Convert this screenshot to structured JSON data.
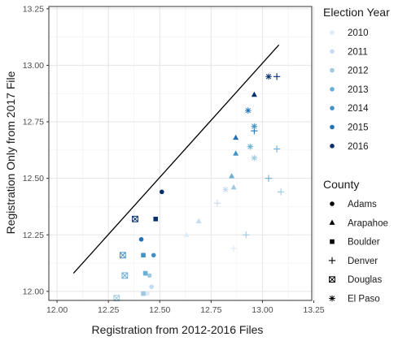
{
  "chart_data": {
    "type": "scatter",
    "xlabel": "Registration from 2012-2016 Files",
    "ylabel": "Registration Only from 2017 File",
    "xlim": [
      11.96,
      13.24
    ],
    "ylim": [
      11.96,
      13.26
    ],
    "x_ticks": [
      12.0,
      12.25,
      12.5,
      12.75,
      13.0,
      13.25
    ],
    "x_tick_labels": [
      "12.00",
      "12.25",
      "12.50",
      "12.75",
      "13.00",
      "13.25"
    ],
    "y_ticks": [
      12.0,
      12.25,
      12.5,
      12.75,
      13.0,
      13.25
    ],
    "y_tick_labels": [
      "12.00",
      "12.25",
      "12.50",
      "12.75",
      "13.00",
      "13.25"
    ],
    "grid": true,
    "reference_line": {
      "x": [
        12.08,
        13.08
      ],
      "y": [
        12.08,
        13.09
      ]
    },
    "legend_year": {
      "title": "Election Year",
      "entries": [
        {
          "label": "2010",
          "color": "#deebf7"
        },
        {
          "label": "2011",
          "color": "#c6dbef"
        },
        {
          "label": "2012",
          "color": "#9ecae1"
        },
        {
          "label": "2013",
          "color": "#6baed6"
        },
        {
          "label": "2014",
          "color": "#4292c6"
        },
        {
          "label": "2015",
          "color": "#2171b5"
        },
        {
          "label": "2016",
          "color": "#08306b"
        }
      ]
    },
    "legend_county": {
      "title": "County",
      "entries": [
        {
          "label": "Adams",
          "shape": "circle"
        },
        {
          "label": "Arapahoe",
          "shape": "triangle"
        },
        {
          "label": "Boulder",
          "shape": "square"
        },
        {
          "label": "Denver",
          "shape": "plus"
        },
        {
          "label": "Douglas",
          "shape": "boxx"
        },
        {
          "label": "El Paso",
          "shape": "star"
        }
      ]
    },
    "points": [
      {
        "county": "Adams",
        "year": "2010",
        "x": 12.44,
        "y": 11.99
      },
      {
        "county": "Adams",
        "year": "2011",
        "x": 12.46,
        "y": 12.02
      },
      {
        "county": "Adams",
        "year": "2012",
        "x": 12.45,
        "y": 12.07
      },
      {
        "county": "Adams",
        "year": "2013",
        "x": 12.43,
        "y": 12.08
      },
      {
        "county": "Adams",
        "year": "2014",
        "x": 12.47,
        "y": 12.16
      },
      {
        "county": "Adams",
        "year": "2015",
        "x": 12.41,
        "y": 12.23
      },
      {
        "county": "Adams",
        "year": "2016",
        "x": 12.51,
        "y": 12.44
      },
      {
        "county": "Arapahoe",
        "year": "2010",
        "x": 12.63,
        "y": 12.25
      },
      {
        "county": "Arapahoe",
        "year": "2011",
        "x": 12.69,
        "y": 12.31
      },
      {
        "county": "Arapahoe",
        "year": "2012",
        "x": 12.86,
        "y": 12.46
      },
      {
        "county": "Arapahoe",
        "year": "2013",
        "x": 12.85,
        "y": 12.51
      },
      {
        "county": "Arapahoe",
        "year": "2014",
        "x": 12.87,
        "y": 12.61
      },
      {
        "county": "Arapahoe",
        "year": "2015",
        "x": 12.87,
        "y": 12.68
      },
      {
        "county": "Arapahoe",
        "year": "2016",
        "x": 12.96,
        "y": 12.87
      },
      {
        "county": "Boulder",
        "year": "2012",
        "x": 12.42,
        "y": 11.99
      },
      {
        "county": "Boulder",
        "year": "2013",
        "x": 12.43,
        "y": 12.08
      },
      {
        "county": "Boulder",
        "year": "2014",
        "x": 12.42,
        "y": 12.16
      },
      {
        "county": "Boulder",
        "year": "2016",
        "x": 12.48,
        "y": 12.32
      },
      {
        "county": "Denver",
        "year": "2010",
        "x": 12.86,
        "y": 12.19
      },
      {
        "county": "Denver",
        "year": "2011",
        "x": 12.78,
        "y": 12.39
      },
      {
        "county": "Denver",
        "year": "2012",
        "x": 12.92,
        "y": 12.25
      },
      {
        "county": "Denver",
        "year": "2012",
        "x": 13.09,
        "y": 12.44
      },
      {
        "county": "Denver",
        "year": "2013",
        "x": 13.03,
        "y": 12.5
      },
      {
        "county": "Denver",
        "year": "2013",
        "x": 13.07,
        "y": 12.63
      },
      {
        "county": "Denver",
        "year": "2015",
        "x": 12.96,
        "y": 12.71
      },
      {
        "county": "Denver",
        "year": "2016",
        "x": 13.07,
        "y": 12.95
      },
      {
        "county": "Douglas",
        "year": "2012",
        "x": 12.29,
        "y": 11.97
      },
      {
        "county": "Douglas",
        "year": "2013",
        "x": 12.33,
        "y": 12.07
      },
      {
        "county": "Douglas",
        "year": "2014",
        "x": 12.32,
        "y": 12.16
      },
      {
        "county": "Douglas",
        "year": "2016",
        "x": 12.38,
        "y": 12.32
      },
      {
        "county": "El Paso",
        "year": "2011",
        "x": 12.82,
        "y": 12.45
      },
      {
        "county": "El Paso",
        "year": "2012",
        "x": 12.96,
        "y": 12.59
      },
      {
        "county": "El Paso",
        "year": "2013",
        "x": 12.94,
        "y": 12.64
      },
      {
        "county": "El Paso",
        "year": "2014",
        "x": 12.96,
        "y": 12.73
      },
      {
        "county": "El Paso",
        "year": "2015",
        "x": 12.93,
        "y": 12.8
      },
      {
        "county": "El Paso",
        "year": "2016",
        "x": 13.03,
        "y": 12.95
      }
    ]
  }
}
